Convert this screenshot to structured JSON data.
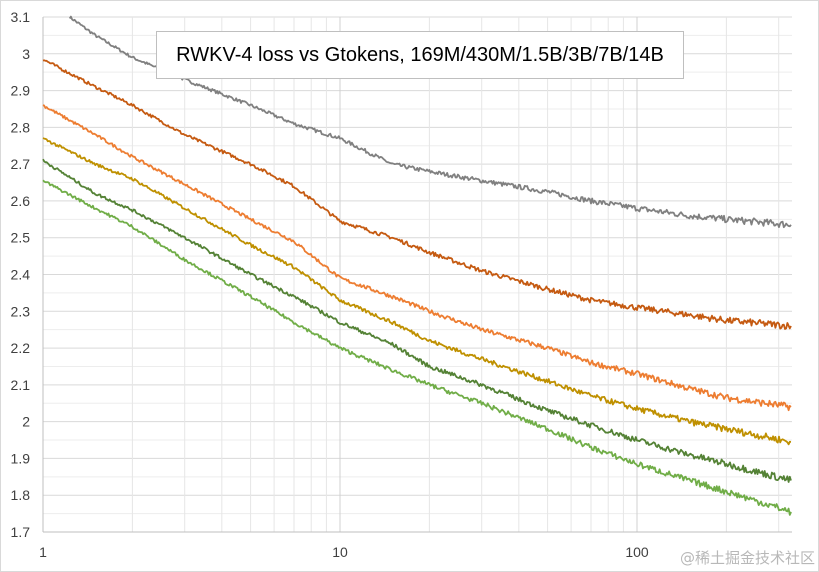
{
  "chart_data": {
    "type": "line",
    "title": "RWKV-4 loss vs Gtokens, 169M/430M/1.5B/3B/7B/14B",
    "xlabel": "",
    "ylabel": "",
    "x_scale": "log",
    "xlim": [
      1,
      330
    ],
    "ylim": [
      1.7,
      3.1
    ],
    "x_ticks": [
      "1",
      "10",
      "100"
    ],
    "y_ticks": [
      "3.1",
      "3",
      "2.9",
      "2.8",
      "2.7",
      "2.6",
      "2.5",
      "2.4",
      "2.3",
      "2.2",
      "2.1",
      "2",
      "1.9",
      "1.8",
      "1.7"
    ],
    "grid": true,
    "legend": "none",
    "x": [
      1,
      1.5,
      2,
      3,
      5,
      7,
      10,
      15,
      20,
      30,
      50,
      70,
      100,
      150,
      200,
      330
    ],
    "series": [
      {
        "color": "#808080",
        "values": [
          null,
          3.05,
          2.99,
          2.93,
          2.86,
          2.81,
          2.77,
          2.7,
          2.68,
          2.655,
          2.625,
          2.6,
          2.58,
          2.56,
          2.55,
          2.535
        ]
      },
      {
        "color": "#c55a11",
        "values": [
          2.985,
          2.91,
          2.86,
          2.78,
          2.7,
          2.64,
          2.545,
          2.5,
          2.46,
          2.41,
          2.36,
          2.33,
          2.31,
          2.29,
          2.275,
          2.26
        ]
      },
      {
        "color": "#ed7d31",
        "values": [
          2.86,
          2.78,
          2.72,
          2.645,
          2.55,
          2.49,
          2.39,
          2.34,
          2.3,
          2.25,
          2.2,
          2.16,
          2.13,
          2.09,
          2.065,
          2.04
        ]
      },
      {
        "color": "#bf9000",
        "values": [
          2.77,
          2.7,
          2.66,
          2.58,
          2.48,
          2.42,
          2.33,
          2.27,
          2.22,
          2.17,
          2.11,
          2.07,
          2.035,
          2.0,
          1.98,
          1.945
        ]
      },
      {
        "color": "#548235",
        "values": [
          2.71,
          2.62,
          2.575,
          2.5,
          2.4,
          2.34,
          2.27,
          2.21,
          2.15,
          2.1,
          2.03,
          1.99,
          1.95,
          1.91,
          1.885,
          1.84
        ]
      },
      {
        "color": "#70ad47",
        "values": [
          2.655,
          2.58,
          2.53,
          2.44,
          2.34,
          2.27,
          2.2,
          2.14,
          2.1,
          2.05,
          1.98,
          1.93,
          1.885,
          1.84,
          1.81,
          1.755
        ]
      }
    ],
    "gray_series_start": {
      "x": 1.23,
      "y": 3.1
    }
  },
  "watermark": "@稀土掘金技术社区"
}
